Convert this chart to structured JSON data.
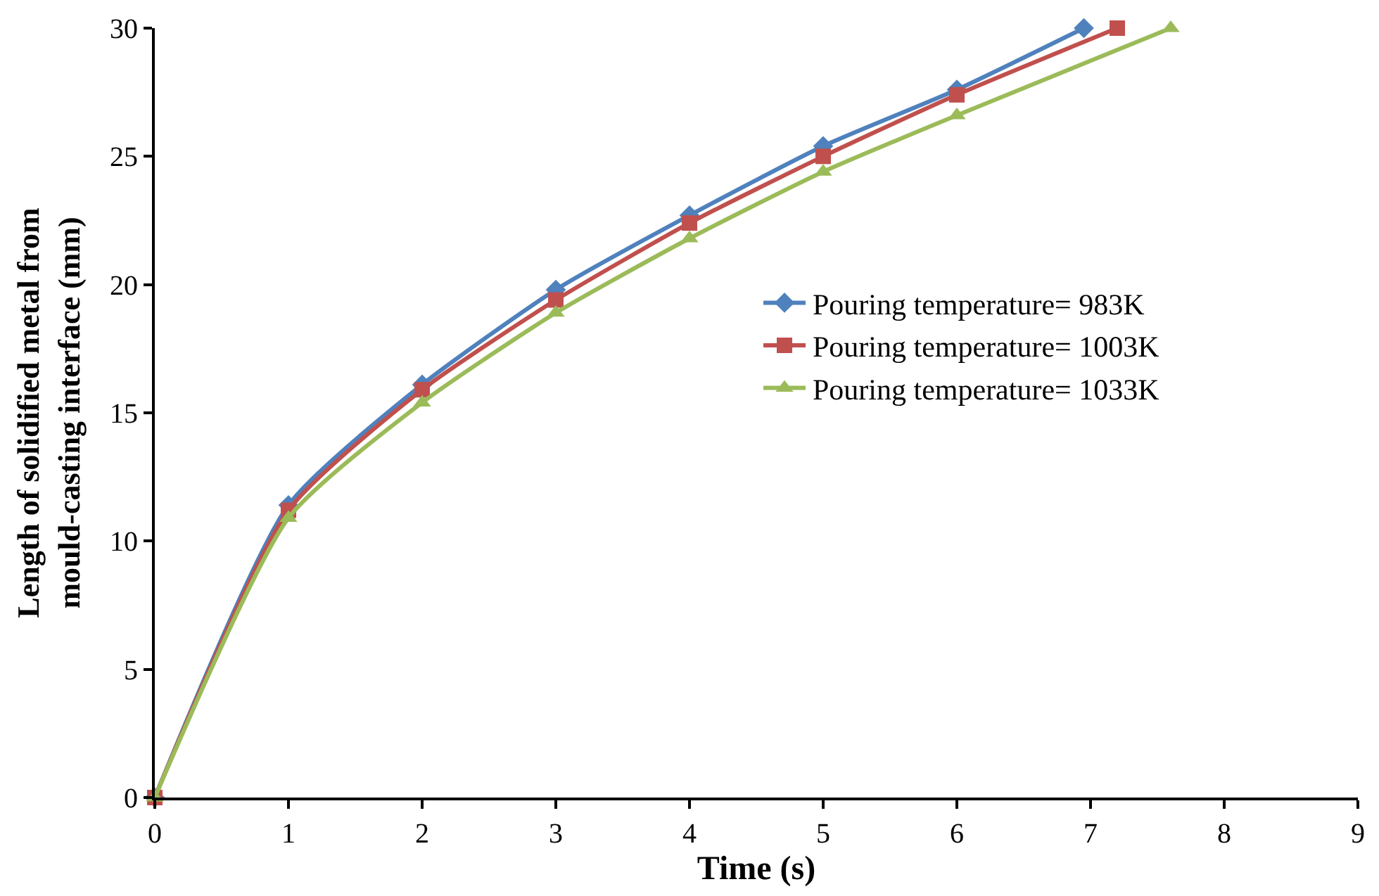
{
  "chart_data": {
    "type": "line",
    "xlabel": "Time (s)",
    "ylabel": "Length of solidified metal from\nmould-casting interface (mm)",
    "xlim": [
      0,
      9
    ],
    "xticks": [
      0,
      1,
      2,
      3,
      4,
      5,
      6,
      7,
      8,
      9
    ],
    "ylim": [
      0,
      30
    ],
    "yticks": [
      0,
      5,
      10,
      15,
      20,
      25,
      30
    ],
    "legend": "right",
    "line_style": "solid",
    "series": [
      {
        "name": "Pouring temperature= 983K",
        "color": "#4f81bd",
        "marker": "diamond",
        "x": [
          0,
          1,
          2,
          3,
          4,
          5,
          6,
          6.95
        ],
        "values": [
          0,
          11.4,
          16.1,
          19.8,
          22.7,
          25.4,
          27.6,
          30
        ]
      },
      {
        "name": "Pouring temperature= 1003K",
        "color": "#c0504d",
        "marker": "square",
        "x": [
          0,
          1,
          2,
          3,
          4,
          5,
          6,
          7.2
        ],
        "values": [
          0,
          11.2,
          15.9,
          19.4,
          22.4,
          25.0,
          27.4,
          30
        ]
      },
      {
        "name": "Pouring temperature= 1033K",
        "color": "#9bbb59",
        "marker": "triangle",
        "x": [
          0,
          1,
          2,
          3,
          4,
          5,
          6,
          7.6
        ],
        "values": [
          0,
          10.9,
          15.4,
          18.9,
          21.8,
          24.4,
          26.6,
          30
        ]
      }
    ]
  }
}
